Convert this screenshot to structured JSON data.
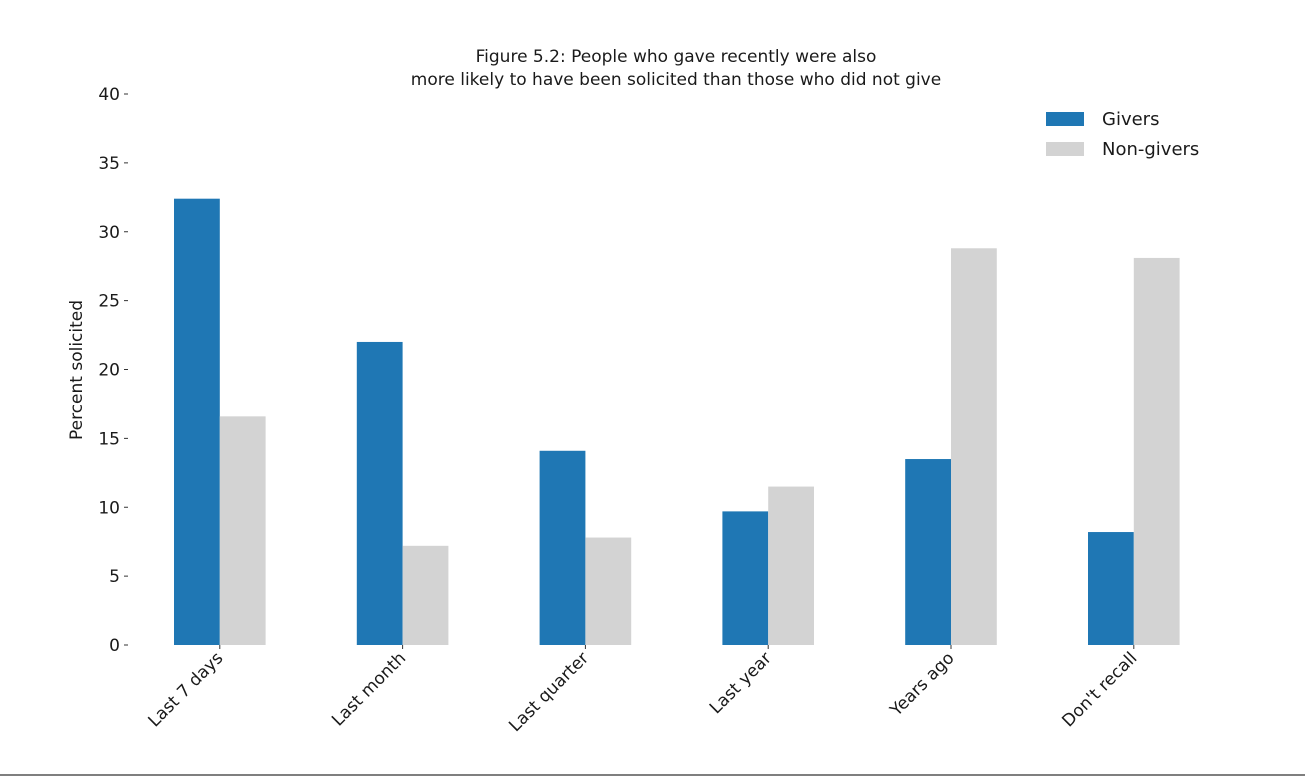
{
  "chart_data": {
    "type": "bar",
    "title": "Figure 5.2: People who gave recently were also\nmore likely to have been solicited than those who did not give",
    "title_lines": [
      "Figure 5.2: People who gave recently were also",
      "more likely to have been solicited than those who did not give"
    ],
    "xlabel": "",
    "ylabel": "Percent solicited",
    "ylim": [
      0,
      40
    ],
    "yticks": [
      0,
      5,
      10,
      15,
      20,
      25,
      30,
      35,
      40
    ],
    "categories": [
      "Last 7 days",
      "Last month",
      "Last quarter",
      "Last year",
      "Years ago",
      "Don't recall"
    ],
    "series": [
      {
        "name": "Givers",
        "color": "#1f77b4",
        "values": [
          32.4,
          22.0,
          14.1,
          9.7,
          13.5,
          8.2
        ]
      },
      {
        "name": "Non-givers",
        "color": "#d3d3d3",
        "values": [
          16.6,
          7.2,
          7.8,
          11.5,
          28.8,
          28.1
        ]
      }
    ],
    "legend": {
      "position": "top-right"
    },
    "grid": false
  }
}
